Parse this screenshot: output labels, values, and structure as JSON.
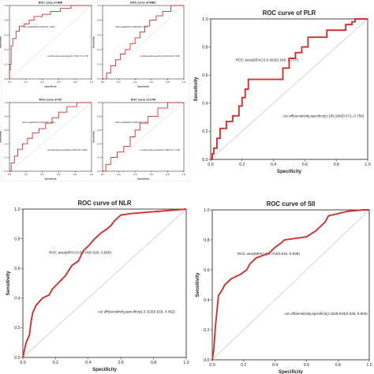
{
  "chart_data": [
    {
      "type": "line",
      "title": "ROC curve of BMI",
      "xlabel": "Specificity",
      "ylabel": "Sensitivity",
      "xlim": [
        0,
        1
      ],
      "ylim": [
        0,
        1
      ],
      "xticks": [
        "0.0",
        "0.2",
        "0.4",
        "0.6",
        "0.8",
        "1.0"
      ],
      "yticks": [
        "0.0",
        "0.2",
        "0.4",
        "0.6",
        "0.8",
        "1.0"
      ],
      "auc_text": "ROC area(95%CI):0.781(0.671, 0.891)",
      "cutoff_text": "cut off(sensitivity,specificity):21.775(0.714, 0.775)",
      "grid": false,
      "series": [
        {
          "color": "#d32f2f",
          "x": [
            0,
            0,
            0.01,
            0.01,
            0.02,
            0.02,
            0.04,
            0.04,
            0.08,
            0.08,
            0.12,
            0.12,
            0.18,
            0.18,
            0.24,
            0.24,
            0.3,
            0.3,
            0.4,
            0.4,
            0.5,
            0.5,
            0.62,
            0.62,
            0.75,
            0.75,
            1.0
          ],
          "y": [
            0,
            0.12,
            0.12,
            0.2,
            0.2,
            0.45,
            0.45,
            0.55,
            0.55,
            0.65,
            0.65,
            0.72,
            0.72,
            0.75,
            0.75,
            0.8,
            0.8,
            0.85,
            0.85,
            0.88,
            0.88,
            0.92,
            0.92,
            0.96,
            0.96,
            1.0,
            1.0
          ]
        }
      ]
    },
    {
      "type": "line",
      "title": "ROC curve of WBC",
      "xlabel": "Specificity",
      "ylabel": "Sensitivity",
      "xlim": [
        0,
        1
      ],
      "ylim": [
        0,
        1
      ],
      "xticks": [
        "0.0",
        "0.2",
        "0.4",
        "0.6",
        "0.8",
        "1.0"
      ],
      "yticks": [
        "0.0",
        "0.2",
        "0.4",
        "0.6",
        "0.8",
        "1.0"
      ],
      "auc_text": "ROC area(95%CI):0.686(0.561, 0.811)",
      "cutoff_text": "cut off(sensitivity,specificity):6.320(0.643, 0.667)",
      "grid": false,
      "series": [
        {
          "color": "#d32f2f",
          "x": [
            0,
            0.05,
            0.05,
            0.1,
            0.1,
            0.16,
            0.16,
            0.22,
            0.22,
            0.28,
            0.28,
            0.34,
            0.34,
            0.4,
            0.4,
            0.46,
            0.46,
            0.52,
            0.52,
            0.58,
            0.58,
            0.66,
            0.66,
            0.74,
            0.74,
            0.84,
            0.84,
            1.0
          ],
          "y": [
            0,
            0,
            0.08,
            0.08,
            0.18,
            0.18,
            0.26,
            0.26,
            0.34,
            0.34,
            0.4,
            0.4,
            0.48,
            0.48,
            0.56,
            0.56,
            0.64,
            0.64,
            0.72,
            0.72,
            0.8,
            0.8,
            0.86,
            0.86,
            0.92,
            0.92,
            1.0,
            1.0
          ]
        }
      ]
    },
    {
      "type": "line",
      "title": "ROC curve of NC",
      "xlabel": "Specificity",
      "ylabel": "Sensitivity",
      "xlim": [
        0,
        1
      ],
      "ylim": [
        0,
        1
      ],
      "xticks": [
        "0.0",
        "0.2",
        "0.4",
        "0.6",
        "0.8",
        "1.0"
      ],
      "yticks": [
        "0.0",
        "0.2",
        "0.4",
        "0.6",
        "0.8",
        "1.0"
      ],
      "auc_text": "ROC area(95%CI):0.702(0.580, 0.824)",
      "cutoff_text": "cut off(sensitivity,specificity):4.365(0.679, 0.683)",
      "grid": false,
      "series": [
        {
          "color": "#d32f2f",
          "x": [
            0,
            0.02,
            0.02,
            0.06,
            0.06,
            0.1,
            0.1,
            0.16,
            0.16,
            0.22,
            0.22,
            0.28,
            0.28,
            0.36,
            0.36,
            0.44,
            0.44,
            0.52,
            0.52,
            0.6,
            0.6,
            0.7,
            0.7,
            0.82,
            0.82,
            1.0
          ],
          "y": [
            0,
            0,
            0.12,
            0.12,
            0.22,
            0.22,
            0.32,
            0.32,
            0.4,
            0.4,
            0.48,
            0.48,
            0.56,
            0.56,
            0.62,
            0.62,
            0.7,
            0.7,
            0.78,
            0.78,
            0.86,
            0.86,
            0.94,
            0.94,
            1.0,
            1.0
          ]
        }
      ]
    },
    {
      "type": "line",
      "title": "ROC curve of LYM",
      "xlabel": "Specificity",
      "ylabel": "Sensitivity",
      "xlim": [
        0,
        1
      ],
      "ylim": [
        0,
        1
      ],
      "xticks": [
        "0.0",
        "0.2",
        "0.4",
        "0.6",
        "0.8",
        "1.0"
      ],
      "yticks": [
        "0.0",
        "0.2",
        "0.4",
        "0.6",
        "0.8",
        "1.0"
      ],
      "auc_text": "ROC area(95%CI):0.633(0.505, 0.761)",
      "cutoff_text": "cut off(sensitivity,specificity):1.055(0.571, 0.700)",
      "grid": false,
      "series": [
        {
          "color": "#d32f2f",
          "x": [
            0,
            0.04,
            0.04,
            0.1,
            0.1,
            0.18,
            0.18,
            0.26,
            0.26,
            0.34,
            0.34,
            0.4,
            0.4,
            0.46,
            0.46,
            0.56,
            0.56,
            0.68,
            0.68,
            0.8,
            0.8,
            1.0
          ],
          "y": [
            0,
            0,
            0.1,
            0.1,
            0.2,
            0.2,
            0.28,
            0.28,
            0.36,
            0.36,
            0.5,
            0.5,
            0.6,
            0.6,
            0.7,
            0.7,
            0.8,
            0.8,
            0.92,
            0.92,
            1.0,
            1.0
          ]
        }
      ]
    },
    {
      "type": "line",
      "title": "ROC curve of PLR",
      "xlabel": "Specificity",
      "ylabel": "Sensitivity",
      "xlim": [
        0,
        1
      ],
      "ylim": [
        0,
        1
      ],
      "xticks": [
        "0.0",
        "0.2",
        "0.4",
        "0.6",
        "0.8",
        "1.0"
      ],
      "yticks": [
        "0.0",
        "0.2",
        "0.4",
        "0.6",
        "0.8",
        "1.0"
      ],
      "auc_text": "ROC area(95%CI):0.662(0.548, 0.777)",
      "cutoff_text": "cut off(sensitivity,specificity):105.286(0.571, 0.756)",
      "grid": false,
      "series": [
        {
          "color": "#d32f2f",
          "x": [
            0,
            0.01,
            0.01,
            0.02,
            0.02,
            0.04,
            0.04,
            0.06,
            0.06,
            0.1,
            0.1,
            0.14,
            0.14,
            0.18,
            0.18,
            0.2,
            0.2,
            0.22,
            0.22,
            0.24,
            0.24,
            0.46,
            0.46,
            0.5,
            0.5,
            0.54,
            0.54,
            0.58,
            0.58,
            0.62,
            0.62,
            0.74,
            0.74,
            0.86,
            0.86,
            0.9,
            0.9,
            0.92,
            0.92,
            1.0
          ],
          "y": [
            0,
            0,
            0.04,
            0.04,
            0.08,
            0.08,
            0.15,
            0.15,
            0.22,
            0.22,
            0.27,
            0.27,
            0.31,
            0.31,
            0.38,
            0.38,
            0.44,
            0.44,
            0.5,
            0.5,
            0.57,
            0.57,
            0.65,
            0.65,
            0.72,
            0.72,
            0.76,
            0.76,
            0.8,
            0.8,
            0.87,
            0.87,
            0.92,
            0.92,
            0.96,
            0.96,
            0.98,
            0.98,
            1.0,
            1.0
          ]
        }
      ]
    },
    {
      "type": "line",
      "title": "ROC curve of NLR",
      "xlabel": "Specificity",
      "ylabel": "Sensitivity",
      "xlim": [
        0,
        1
      ],
      "ylim": [
        0,
        1
      ],
      "xticks": [
        "0.0",
        "0.2",
        "0.4",
        "0.6",
        "0.8",
        "1.0"
      ],
      "yticks": [
        "0.0",
        "0.2",
        "0.4",
        "0.6",
        "0.8",
        "1.0"
      ],
      "auc_text": "ROC area(95%CI):0.743(0.629, 0.858)",
      "cutoff_text": "cut off(sensitivity,specificity):3.323(0.929, 0.462)",
      "grid": false,
      "series": [
        {
          "color": "#d32f2f",
          "x": [
            0,
            0.02,
            0.02,
            0.04,
            0.04,
            0.05,
            0.05,
            0.06,
            0.06,
            0.08,
            0.08,
            0.12,
            0.12,
            0.16,
            0.16,
            0.18,
            0.18,
            0.26,
            0.26,
            0.3,
            0.3,
            0.34,
            0.34,
            0.37,
            0.37,
            0.4,
            0.4,
            0.44,
            0.44,
            0.48,
            0.48,
            0.52,
            0.52,
            0.54,
            0.54,
            0.56,
            0.56,
            0.58,
            0.58,
            0.6,
            0.6,
            0.66,
            0.66,
            1.0
          ],
          "y": [
            0,
            0.1,
            0.1,
            0.15,
            0.15,
            0.24,
            0.24,
            0.3,
            0.3,
            0.35,
            0.35,
            0.4,
            0.4,
            0.42,
            0.42,
            0.46,
            0.46,
            0.55,
            0.55,
            0.62,
            0.62,
            0.65,
            0.65,
            0.72,
            0.72,
            0.75,
            0.75,
            0.8,
            0.8,
            0.84,
            0.84,
            0.87,
            0.87,
            0.89,
            0.89,
            0.92,
            0.92,
            0.94,
            0.94,
            0.96,
            0.96,
            0.97,
            0.97,
            1.0
          ]
        }
      ]
    },
    {
      "type": "line",
      "title": "ROC curve of SII",
      "xlabel": "Specificity",
      "ylabel": "Sensitivity",
      "xlim": [
        0,
        1
      ],
      "ylim": [
        0,
        1
      ],
      "xticks": [
        "0.0",
        "0.2",
        "0.4",
        "0.6",
        "0.8",
        "1.0"
      ],
      "yticks": [
        "0.0",
        "0.2",
        "0.4",
        "0.6",
        "0.8",
        "1.0"
      ],
      "auc_text": "ROC area(95%CI):0.724(0.610, 0.838)",
      "cutoff_text": "cut off(sensitivity,specificity):1528.633(0.536, 0.800)",
      "grid": false,
      "series": [
        {
          "color": "#d32f2f",
          "x": [
            0,
            0.01,
            0.01,
            0.02,
            0.02,
            0.04,
            0.04,
            0.06,
            0.06,
            0.08,
            0.08,
            0.12,
            0.12,
            0.18,
            0.18,
            0.22,
            0.22,
            0.24,
            0.24,
            0.28,
            0.28,
            0.36,
            0.36,
            0.4,
            0.4,
            0.44,
            0.44,
            0.46,
            0.46,
            0.6,
            0.6,
            0.66,
            0.66,
            0.7,
            0.7,
            0.72,
            0.72,
            0.74,
            0.74,
            0.86,
            0.86,
            0.96,
            0.96,
            1.0
          ],
          "y": [
            0,
            0.07,
            0.07,
            0.22,
            0.22,
            0.43,
            0.43,
            0.46,
            0.46,
            0.5,
            0.5,
            0.54,
            0.54,
            0.57,
            0.57,
            0.6,
            0.6,
            0.64,
            0.64,
            0.68,
            0.68,
            0.71,
            0.71,
            0.75,
            0.75,
            0.78,
            0.78,
            0.8,
            0.8,
            0.82,
            0.82,
            0.86,
            0.86,
            0.9,
            0.9,
            0.92,
            0.92,
            0.96,
            0.96,
            0.99,
            0.99,
            1.0,
            1.0,
            1.0
          ]
        }
      ]
    }
  ]
}
